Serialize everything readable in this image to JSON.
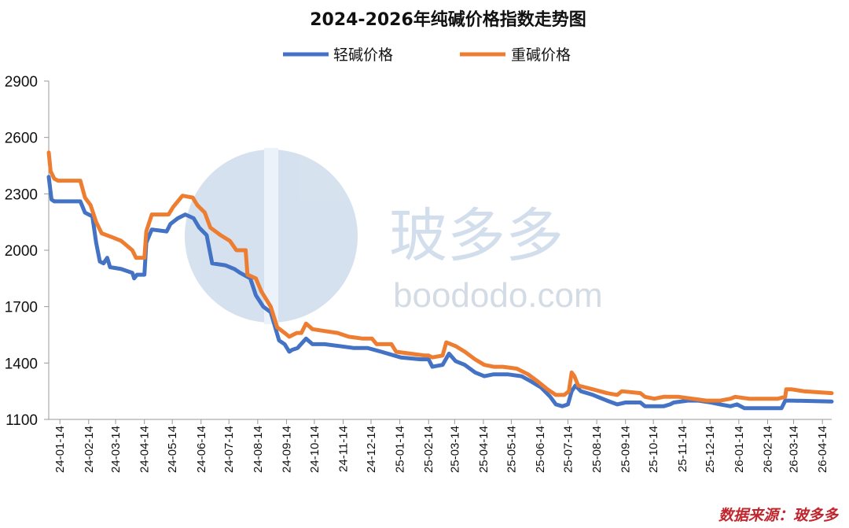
{
  "chart_data": {
    "type": "line",
    "title": "2024-2026年纯碱价格指数走势图",
    "ylim": [
      1100,
      2950
    ],
    "y_ticks": [
      1100,
      1400,
      1700,
      2000,
      2300,
      2600,
      2900
    ],
    "x_range": [
      "2024-01-02",
      "2026-04-24"
    ],
    "x_tick_labels": [
      "24-01-14",
      "24-02-14",
      "24-03-14",
      "24-04-14",
      "24-05-14",
      "24-06-14",
      "24-07-14",
      "24-08-14",
      "24-09-14",
      "24-10-14",
      "24-11-14",
      "24-12-14",
      "25-01-14",
      "25-02-14",
      "25-03-14",
      "25-04-14",
      "25-05-14",
      "25-06-14",
      "25-07-14",
      "25-08-14",
      "25-09-14",
      "25-10-14",
      "25-11-14",
      "25-12-14",
      "26-01-14",
      "26-02-14",
      "26-03-14",
      "26-04-14"
    ],
    "legend_position": "top-center",
    "grid": false,
    "series": [
      {
        "name": "轻碱价格",
        "color": "#4472c4",
        "points": [
          [
            "2024-01-02",
            2390
          ],
          [
            "2024-01-05",
            2270
          ],
          [
            "2024-01-08",
            2260
          ],
          [
            "2024-01-20",
            2260
          ],
          [
            "2024-02-05",
            2260
          ],
          [
            "2024-02-10",
            2200
          ],
          [
            "2024-02-18",
            2180
          ],
          [
            "2024-02-22",
            2040
          ],
          [
            "2024-02-26",
            1940
          ],
          [
            "2024-03-01",
            1930
          ],
          [
            "2024-03-05",
            1960
          ],
          [
            "2024-03-08",
            1910
          ],
          [
            "2024-03-20",
            1900
          ],
          [
            "2024-04-01",
            1880
          ],
          [
            "2024-04-03",
            1850
          ],
          [
            "2024-04-06",
            1870
          ],
          [
            "2024-04-14",
            1870
          ],
          [
            "2024-04-16",
            2040
          ],
          [
            "2024-04-22",
            2110
          ],
          [
            "2024-05-08",
            2100
          ],
          [
            "2024-05-12",
            2140
          ],
          [
            "2024-05-20",
            2170
          ],
          [
            "2024-05-28",
            2190
          ],
          [
            "2024-06-06",
            2170
          ],
          [
            "2024-06-12",
            2120
          ],
          [
            "2024-06-20",
            2080
          ],
          [
            "2024-06-26",
            1930
          ],
          [
            "2024-07-10",
            1920
          ],
          [
            "2024-07-20",
            1900
          ],
          [
            "2024-07-26",
            1880
          ],
          [
            "2024-08-06",
            1850
          ],
          [
            "2024-08-12",
            1760
          ],
          [
            "2024-08-20",
            1700
          ],
          [
            "2024-08-28",
            1670
          ],
          [
            "2024-09-06",
            1520
          ],
          [
            "2024-09-12",
            1500
          ],
          [
            "2024-09-17",
            1460
          ],
          [
            "2024-09-20",
            1470
          ],
          [
            "2024-09-26",
            1480
          ],
          [
            "2024-10-05",
            1530
          ],
          [
            "2024-10-12",
            1500
          ],
          [
            "2024-10-25",
            1500
          ],
          [
            "2024-11-10",
            1490
          ],
          [
            "2024-11-25",
            1480
          ],
          [
            "2024-12-10",
            1480
          ],
          [
            "2024-12-25",
            1460
          ],
          [
            "2025-01-08",
            1440
          ],
          [
            "2025-01-15",
            1430
          ],
          [
            "2025-02-05",
            1420
          ],
          [
            "2025-02-14",
            1420
          ],
          [
            "2025-02-18",
            1380
          ],
          [
            "2025-03-01",
            1390
          ],
          [
            "2025-03-08",
            1450
          ],
          [
            "2025-03-15",
            1410
          ],
          [
            "2025-03-25",
            1390
          ],
          [
            "2025-04-05",
            1350
          ],
          [
            "2025-04-15",
            1330
          ],
          [
            "2025-04-25",
            1340
          ],
          [
            "2025-05-10",
            1340
          ],
          [
            "2025-05-25",
            1330
          ],
          [
            "2025-06-05",
            1300
          ],
          [
            "2025-06-15",
            1270
          ],
          [
            "2025-06-25",
            1220
          ],
          [
            "2025-07-01",
            1180
          ],
          [
            "2025-07-08",
            1170
          ],
          [
            "2025-07-14",
            1180
          ],
          [
            "2025-07-18",
            1250
          ],
          [
            "2025-07-22",
            1280
          ],
          [
            "2025-07-28",
            1250
          ],
          [
            "2025-08-10",
            1230
          ],
          [
            "2025-08-25",
            1200
          ],
          [
            "2025-09-05",
            1180
          ],
          [
            "2025-09-14",
            1190
          ],
          [
            "2025-09-30",
            1190
          ],
          [
            "2025-10-05",
            1170
          ],
          [
            "2025-10-15",
            1170
          ],
          [
            "2025-10-25",
            1170
          ],
          [
            "2025-11-01",
            1180
          ],
          [
            "2025-11-05",
            1190
          ],
          [
            "2025-11-20",
            1200
          ],
          [
            "2025-12-01",
            1200
          ],
          [
            "2025-12-15",
            1190
          ],
          [
            "2025-12-25",
            1180
          ],
          [
            "2026-01-05",
            1170
          ],
          [
            "2026-01-12",
            1180
          ],
          [
            "2026-01-20",
            1160
          ],
          [
            "2026-02-05",
            1160
          ],
          [
            "2026-02-20",
            1160
          ],
          [
            "2026-03-01",
            1160
          ],
          [
            "2026-03-05",
            1200
          ],
          [
            "2026-03-12",
            1200
          ],
          [
            "2026-04-24",
            1195
          ]
        ]
      },
      {
        "name": "重碱价格",
        "color": "#ed7d31",
        "points": [
          [
            "2024-01-02",
            2520
          ],
          [
            "2024-01-04",
            2420
          ],
          [
            "2024-01-08",
            2380
          ],
          [
            "2024-01-12",
            2370
          ],
          [
            "2024-02-05",
            2370
          ],
          [
            "2024-02-10",
            2280
          ],
          [
            "2024-02-16",
            2240
          ],
          [
            "2024-02-22",
            2150
          ],
          [
            "2024-02-28",
            2090
          ],
          [
            "2024-03-10",
            2070
          ],
          [
            "2024-03-20",
            2050
          ],
          [
            "2024-04-01",
            2000
          ],
          [
            "2024-04-05",
            1960
          ],
          [
            "2024-04-14",
            1960
          ],
          [
            "2024-04-16",
            2100
          ],
          [
            "2024-04-22",
            2190
          ],
          [
            "2024-05-10",
            2190
          ],
          [
            "2024-05-15",
            2230
          ],
          [
            "2024-05-25",
            2290
          ],
          [
            "2024-06-05",
            2280
          ],
          [
            "2024-06-10",
            2240
          ],
          [
            "2024-06-18",
            2200
          ],
          [
            "2024-06-24",
            2120
          ],
          [
            "2024-07-05",
            2080
          ],
          [
            "2024-07-15",
            2050
          ],
          [
            "2024-07-22",
            2000
          ],
          [
            "2024-08-01",
            2000
          ],
          [
            "2024-08-03",
            1870
          ],
          [
            "2024-08-12",
            1850
          ],
          [
            "2024-08-18",
            1780
          ],
          [
            "2024-08-28",
            1700
          ],
          [
            "2024-09-04",
            1590
          ],
          [
            "2024-09-12",
            1560
          ],
          [
            "2024-09-17",
            1540
          ],
          [
            "2024-09-25",
            1560
          ],
          [
            "2024-09-30",
            1560
          ],
          [
            "2024-10-05",
            1610
          ],
          [
            "2024-10-12",
            1580
          ],
          [
            "2024-10-25",
            1570
          ],
          [
            "2024-11-08",
            1560
          ],
          [
            "2024-11-20",
            1540
          ],
          [
            "2024-12-05",
            1530
          ],
          [
            "2024-12-15",
            1530
          ],
          [
            "2024-12-20",
            1500
          ],
          [
            "2025-01-05",
            1500
          ],
          [
            "2025-01-10",
            1460
          ],
          [
            "2025-01-25",
            1450
          ],
          [
            "2025-02-10",
            1440
          ],
          [
            "2025-02-14",
            1440
          ],
          [
            "2025-02-18",
            1430
          ],
          [
            "2025-03-01",
            1440
          ],
          [
            "2025-03-05",
            1510
          ],
          [
            "2025-03-15",
            1490
          ],
          [
            "2025-03-25",
            1460
          ],
          [
            "2025-04-05",
            1420
          ],
          [
            "2025-04-15",
            1390
          ],
          [
            "2025-04-25",
            1380
          ],
          [
            "2025-05-05",
            1380
          ],
          [
            "2025-05-20",
            1370
          ],
          [
            "2025-06-01",
            1340
          ],
          [
            "2025-06-12",
            1300
          ],
          [
            "2025-06-22",
            1260
          ],
          [
            "2025-07-01",
            1230
          ],
          [
            "2025-07-10",
            1230
          ],
          [
            "2025-07-15",
            1250
          ],
          [
            "2025-07-18",
            1350
          ],
          [
            "2025-07-21",
            1330
          ],
          [
            "2025-07-25",
            1280
          ],
          [
            "2025-08-10",
            1260
          ],
          [
            "2025-08-25",
            1240
          ],
          [
            "2025-09-05",
            1230
          ],
          [
            "2025-09-10",
            1250
          ],
          [
            "2025-09-30",
            1240
          ],
          [
            "2025-10-05",
            1220
          ],
          [
            "2025-10-15",
            1210
          ],
          [
            "2025-10-25",
            1220
          ],
          [
            "2025-11-10",
            1220
          ],
          [
            "2025-11-25",
            1210
          ],
          [
            "2025-12-10",
            1200
          ],
          [
            "2025-12-25",
            1200
          ],
          [
            "2026-01-05",
            1210
          ],
          [
            "2026-01-10",
            1220
          ],
          [
            "2026-01-25",
            1210
          ],
          [
            "2026-02-10",
            1210
          ],
          [
            "2026-02-25",
            1210
          ],
          [
            "2026-03-05",
            1220
          ],
          [
            "2026-03-06",
            1260
          ],
          [
            "2026-03-12",
            1260
          ],
          [
            "2026-03-25",
            1250
          ],
          [
            "2026-04-24",
            1240
          ]
        ]
      }
    ]
  },
  "watermark": {
    "name": "玻多多",
    "url": "boododo.com"
  },
  "source_note": "数据来源：玻多多"
}
